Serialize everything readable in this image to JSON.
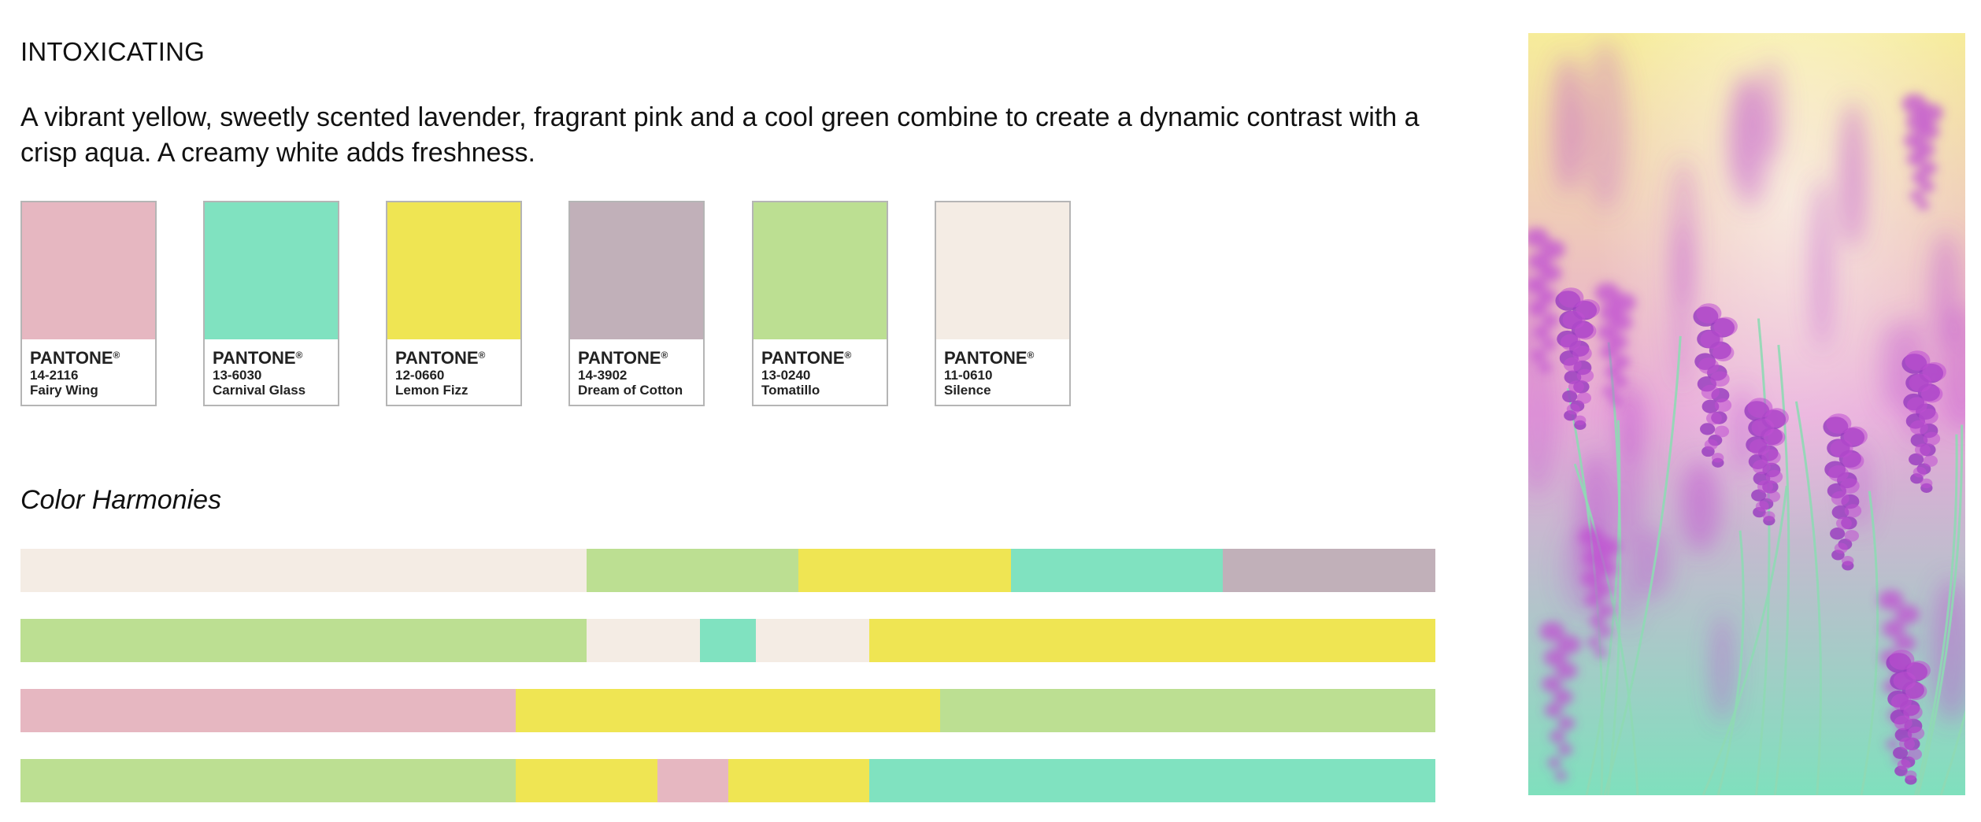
{
  "palette": {
    "title": "INTOXICATING",
    "description": "A vibrant yellow, sweetly scented lavender, fragrant pink and a cool green combine to create a dynamic contrast with a crisp aqua. A creamy white adds freshness.",
    "swatches": [
      {
        "brand": "PANTONE",
        "reg": "®",
        "code": "14-2116",
        "name": "Fairy Wing",
        "color": "#e6b7c1"
      },
      {
        "brand": "PANTONE",
        "reg": "®",
        "code": "13-6030",
        "name": "Carnival Glass",
        "color": "#80e2c0"
      },
      {
        "brand": "PANTONE",
        "reg": "®",
        "code": "12-0660",
        "name": "Lemon Fizz",
        "color": "#efe553"
      },
      {
        "brand": "PANTONE",
        "reg": "®",
        "code": "14-3902",
        "name": "Dream of Cotton",
        "color": "#c1b0b9"
      },
      {
        "brand": "PANTONE",
        "reg": "®",
        "code": "13-0240",
        "name": "Tomatillo",
        "color": "#bcdf92"
      },
      {
        "brand": "PANTONE",
        "reg": "®",
        "code": "11-0610",
        "name": "Silence",
        "color": "#f4ece4"
      }
    ]
  },
  "harmonies": {
    "title": "Color Harmonies",
    "rows": [
      [
        {
          "color": "#f4ece4",
          "share": 40
        },
        {
          "color": "#bcdf92",
          "share": 15
        },
        {
          "color": "#efe553",
          "share": 15
        },
        {
          "color": "#80e2c0",
          "share": 15
        },
        {
          "color": "#c1b0b9",
          "share": 15
        }
      ],
      [
        {
          "color": "#bcdf92",
          "share": 40
        },
        {
          "color": "#f4ece4",
          "share": 8
        },
        {
          "color": "#80e2c0",
          "share": 4
        },
        {
          "color": "#f4ece4",
          "share": 8
        },
        {
          "color": "#efe553",
          "share": 40
        }
      ],
      [
        {
          "color": "#e6b7c1",
          "share": 35
        },
        {
          "color": "#efe553",
          "share": 30
        },
        {
          "color": "#bcdf92",
          "share": 35
        }
      ],
      [
        {
          "color": "#bcdf92",
          "share": 35
        },
        {
          "color": "#efe553",
          "share": 10
        },
        {
          "color": "#e6b7c1",
          "share": 5
        },
        {
          "color": "#efe553",
          "share": 10
        },
        {
          "color": "#80e2c0",
          "share": 40
        }
      ]
    ]
  },
  "photo": {
    "subject": "lavender-flowers-photo",
    "colors": {
      "top": "#f6ec9a",
      "middle": "#e7a7d8",
      "bottom": "#7fe0bd",
      "flower": "#c04fd2",
      "flower_dark": "#9a3fbf",
      "stem": "#8fd9b4"
    }
  }
}
